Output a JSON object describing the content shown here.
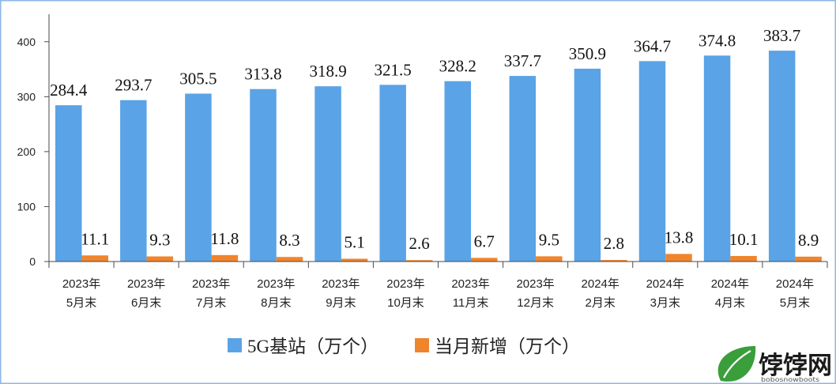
{
  "chart_data": {
    "type": "bar",
    "categories": [
      [
        "2023年",
        "5月末"
      ],
      [
        "2023年",
        "6月末"
      ],
      [
        "2023年",
        "7月末"
      ],
      [
        "2023年",
        "8月末"
      ],
      [
        "2023年",
        "9月末"
      ],
      [
        "2023年",
        "10月末"
      ],
      [
        "2023年",
        "11月末"
      ],
      [
        "2023年",
        "12月末"
      ],
      [
        "2024年",
        "2月末"
      ],
      [
        "2024年",
        "3月末"
      ],
      [
        "2024年",
        "4月末"
      ],
      [
        "2024年",
        "5月末"
      ]
    ],
    "series": [
      {
        "name": "5G基站（万个）",
        "color": "#5aa3e6",
        "values": [
          284.4,
          293.7,
          305.5,
          313.8,
          318.9,
          321.5,
          328.2,
          337.7,
          350.9,
          364.7,
          374.8,
          383.7
        ]
      },
      {
        "name": "当月新增（万个）",
        "color": "#f0842c",
        "values": [
          11.1,
          9.3,
          11.8,
          8.3,
          5.1,
          2.6,
          6.7,
          9.5,
          2.8,
          13.8,
          10.1,
          8.9
        ]
      }
    ],
    "ylim": [
      0,
      450
    ],
    "yticks": [
      0,
      100,
      200,
      300,
      400
    ],
    "grid": false,
    "legend": "bottom",
    "data_labels": true
  },
  "watermark": {
    "site_name": "饽饽网",
    "site_domain": "bobosnowboots"
  },
  "colors": {
    "border": "#8cb6e4",
    "axis": "#4a4a4a",
    "leaf": "#3a9e3a",
    "leaf_dark": "#2a7d2a"
  }
}
